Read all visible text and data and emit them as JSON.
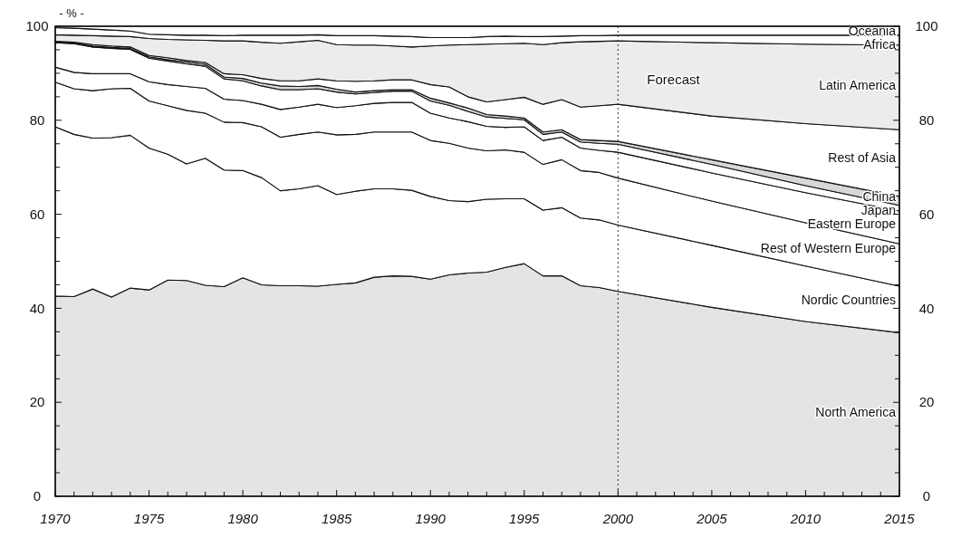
{
  "chart_data": {
    "type": "area",
    "stacked": true,
    "ylabel": "- % -",
    "x": [
      1970,
      1971,
      1972,
      1973,
      1974,
      1975,
      1976,
      1977,
      1978,
      1979,
      1980,
      1981,
      1982,
      1983,
      1984,
      1985,
      1986,
      1987,
      1988,
      1989,
      1990,
      1991,
      1992,
      1993,
      1994,
      1995,
      1996,
      1997,
      1998,
      1999,
      2000,
      2005,
      2010,
      2015
    ],
    "xlim": [
      1970,
      2015
    ],
    "xticks": [
      1970,
      {
        "value": 1971,
        "label": null
      },
      {
        "value": 1972,
        "label": null
      },
      {
        "value": 1973,
        "label": null
      },
      {
        "value": 1974,
        "label": null
      },
      1975,
      {
        "value": 1976,
        "label": null
      },
      {
        "value": 1977,
        "label": null
      },
      {
        "value": 1978,
        "label": null
      },
      {
        "value": 1979,
        "label": null
      },
      1980,
      {
        "value": 1981,
        "label": null
      },
      {
        "value": 1982,
        "label": null
      },
      {
        "value": 1983,
        "label": null
      },
      {
        "value": 1984,
        "label": null
      },
      1985,
      {
        "value": 1986,
        "label": null
      },
      {
        "value": 1987,
        "label": null
      },
      {
        "value": 1988,
        "label": null
      },
      {
        "value": 1989,
        "label": null
      },
      1990,
      {
        "value": 1991,
        "label": null
      },
      {
        "value": 1992,
        "label": null
      },
      {
        "value": 1993,
        "label": null
      },
      {
        "value": 1994,
        "label": null
      },
      1995,
      {
        "value": 1996,
        "label": null
      },
      {
        "value": 1997,
        "label": null
      },
      {
        "value": 1998,
        "label": null
      },
      {
        "value": 1999,
        "label": null
      },
      2000,
      {
        "value": 2001,
        "label": null
      },
      {
        "value": 2002,
        "label": null
      },
      {
        "value": 2003,
        "label": null
      },
      {
        "value": 2004,
        "label": null
      },
      2005,
      {
        "value": 2006,
        "label": null
      },
      {
        "value": 2007,
        "label": null
      },
      {
        "value": 2008,
        "label": null
      },
      {
        "value": 2009,
        "label": null
      },
      2010,
      {
        "value": 2011,
        "label": null
      },
      {
        "value": 2012,
        "label": null
      },
      {
        "value": 2013,
        "label": null
      },
      {
        "value": 2014,
        "label": null
      },
      2015
    ],
    "ylim": [
      0,
      100
    ],
    "yticks": [
      0,
      {
        "value": 5,
        "label": null
      },
      {
        "value": 10,
        "label": null
      },
      {
        "value": 15,
        "label": null
      },
      20,
      {
        "value": 25,
        "label": null
      },
      {
        "value": 30,
        "label": null
      },
      {
        "value": 35,
        "label": null
      },
      40,
      {
        "value": 45,
        "label": null
      },
      {
        "value": 50,
        "label": null
      },
      {
        "value": 55,
        "label": null
      },
      60,
      {
        "value": 65,
        "label": null
      },
      {
        "value": 70,
        "label": null
      },
      {
        "value": 75,
        "label": null
      },
      80,
      {
        "value": 85,
        "label": null
      },
      {
        "value": 90,
        "label": null
      },
      {
        "value": 95,
        "label": null
      },
      100
    ],
    "y2lim": [
      0,
      100
    ],
    "y2ticks": [
      0,
      {
        "value": 5,
        "label": null
      },
      {
        "value": 10,
        "label": null
      },
      {
        "value": 15,
        "label": null
      },
      20,
      {
        "value": 25,
        "label": null
      },
      {
        "value": 30,
        "label": null
      },
      {
        "value": 35,
        "label": null
      },
      40,
      {
        "value": 45,
        "label": null
      },
      {
        "value": 50,
        "label": null
      },
      {
        "value": 55,
        "label": null
      },
      60,
      {
        "value": 65,
        "label": null
      },
      {
        "value": 70,
        "label": null
      },
      {
        "value": 75,
        "label": null
      },
      80,
      {
        "value": 85,
        "label": null
      },
      {
        "value": 90,
        "label": null
      },
      {
        "value": 95,
        "label": null
      },
      100
    ],
    "ref_lines": [
      {
        "axis": "x",
        "value": 2000,
        "label": "Forecast",
        "line_style": "dotted"
      }
    ],
    "series": [
      {
        "name": "North America",
        "color": "#e4e4e4",
        "values": [
          42.6,
          42.5,
          44.1,
          42.4,
          44.3,
          43.9,
          46.0,
          45.9,
          44.9,
          44.6,
          46.5,
          45.0,
          44.8,
          44.8,
          44.7,
          45.1,
          45.4,
          46.6,
          46.9,
          46.8,
          46.2,
          47.1,
          47.5,
          47.7,
          48.7,
          49.5,
          46.9,
          46.9,
          44.8,
          44.4,
          43.6,
          40.2,
          37.2,
          34.8
        ]
      },
      {
        "name": "Nordic Countries",
        "color": "#ffffff",
        "values": [
          36.0,
          34.5,
          32.1,
          33.9,
          32.5,
          30.2,
          26.8,
          24.8,
          27.0,
          24.8,
          22.8,
          22.8,
          20.2,
          20.6,
          21.4,
          19.1,
          19.5,
          18.8,
          18.5,
          18.3,
          17.6,
          15.8,
          15.2,
          15.5,
          14.6,
          13.8,
          14.0,
          14.5,
          14.4,
          14.4,
          14.1,
          13.2,
          11.8,
          9.9
        ]
      },
      {
        "name": "Rest of Western Europe",
        "color": "#ffffff",
        "values": [
          9.5,
          9.7,
          10.1,
          10.4,
          10.0,
          10.0,
          10.3,
          11.4,
          9.6,
          10.2,
          10.2,
          10.8,
          11.4,
          11.6,
          11.4,
          12.7,
          12.1,
          12.1,
          12.1,
          12.4,
          11.9,
          12.2,
          11.4,
          10.3,
          10.4,
          9.9,
          9.7,
          10.2,
          10.1,
          10.1,
          10.0,
          9.4,
          9.2,
          9.0
        ]
      },
      {
        "name": "Eastern Europe",
        "color": "#ffffff",
        "values": [
          3.2,
          3.5,
          3.6,
          3.2,
          3.1,
          4.1,
          4.5,
          5.1,
          5.3,
          4.9,
          4.7,
          4.8,
          5.9,
          5.8,
          5.9,
          5.8,
          6.1,
          6.1,
          6.3,
          6.3,
          5.8,
          5.4,
          5.6,
          5.2,
          4.8,
          5.4,
          5.1,
          4.8,
          4.8,
          4.7,
          5.5,
          6.0,
          6.4,
          7.0
        ]
      },
      {
        "name": "Japan",
        "color": "#ffffff",
        "values": [
          5.2,
          6.1,
          5.7,
          5.4,
          5.2,
          5.0,
          5.0,
          4.8,
          4.7,
          4.3,
          4.2,
          3.9,
          4.2,
          3.7,
          3.3,
          3.3,
          2.5,
          2.3,
          2.4,
          2.4,
          2.6,
          2.7,
          2.2,
          2.0,
          1.9,
          1.5,
          1.3,
          1.1,
          1.3,
          1.5,
          1.7,
          1.8,
          1.5,
          1.2
        ]
      },
      {
        "name": "China",
        "color": "#d8d8d8",
        "values": [
          0.1,
          0.1,
          0.2,
          0.2,
          0.2,
          0.3,
          0.3,
          0.4,
          0.4,
          0.4,
          0.5,
          0.6,
          0.8,
          0.7,
          0.7,
          0.6,
          0.4,
          0.4,
          0.3,
          0.3,
          0.6,
          0.5,
          0.7,
          0.5,
          0.5,
          0.4,
          0.5,
          0.5,
          0.5,
          0.6,
          0.6,
          1.0,
          1.6,
          1.9
        ]
      },
      {
        "name": "Rest of Asia",
        "color": "#ffffff",
        "values": [
          0.2,
          0.2,
          0.3,
          0.3,
          0.3,
          0.3,
          0.4,
          0.3,
          0.4,
          0.7,
          0.8,
          1.0,
          1.1,
          1.2,
          1.4,
          1.8,
          2.3,
          2.1,
          2.1,
          2.1,
          2.9,
          3.4,
          2.4,
          2.7,
          3.5,
          4.4,
          5.9,
          6.4,
          6.9,
          7.4,
          7.9,
          9.3,
          11.6,
          14.2
        ]
      },
      {
        "name": "Latin America",
        "color": "#ececec",
        "values": [
          1.4,
          1.5,
          1.9,
          2.1,
          2.2,
          3.6,
          3.9,
          4.4,
          4.7,
          7.0,
          7.2,
          7.7,
          8.0,
          8.3,
          8.2,
          7.7,
          7.7,
          7.6,
          7.2,
          7.0,
          8.2,
          8.9,
          11.1,
          12.3,
          11.9,
          11.5,
          12.7,
          12.1,
          13.9,
          13.7,
          13.5,
          15.6,
          16.9,
          18.0
        ]
      },
      {
        "name": "Africa",
        "color": "#ffffff",
        "values": [
          1.5,
          1.5,
          1.4,
          1.3,
          1.2,
          0.9,
          1.0,
          1.0,
          1.1,
          1.1,
          1.2,
          1.5,
          1.7,
          1.4,
          1.2,
          1.9,
          2.0,
          2.0,
          2.1,
          2.2,
          1.8,
          1.6,
          1.5,
          1.6,
          1.6,
          1.4,
          1.7,
          1.4,
          1.3,
          1.2,
          1.2,
          1.6,
          1.9,
          2.1
        ]
      },
      {
        "name": "Oceania",
        "color": "#ffffff",
        "values": [
          0.3,
          0.4,
          0.6,
          0.8,
          1.0,
          1.7,
          1.8,
          1.9,
          1.9,
          2.0,
          1.9,
          1.9,
          1.9,
          1.9,
          1.8,
          2.0,
          2.0,
          2.0,
          2.1,
          2.2,
          2.4,
          2.4,
          2.4,
          2.2,
          2.1,
          2.2,
          2.2,
          2.1,
          2.0,
          2.0,
          1.9,
          1.9,
          1.9,
          1.9
        ]
      }
    ]
  }
}
